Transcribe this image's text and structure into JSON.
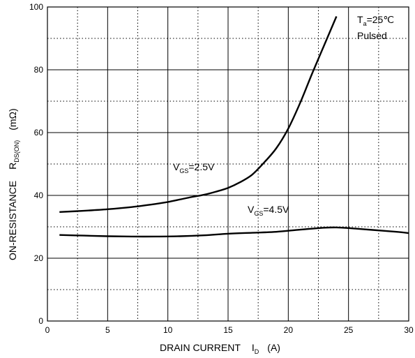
{
  "chart_data": {
    "type": "line",
    "xlabel": "DRAIN CURRENT",
    "xlabel_symbol": "I",
    "xlabel_symbol_sub": "D",
    "xlabel_unit": "(A)",
    "ylabel": "ON-RESISTANCE",
    "ylabel_symbol": "R",
    "ylabel_symbol_sub": "DS(ON)",
    "ylabel_unit": "(mΩ)",
    "xlim": [
      0,
      30
    ],
    "ylim": [
      0,
      100
    ],
    "x_ticks": [
      "0",
      "5",
      "10",
      "15",
      "20",
      "25",
      "30"
    ],
    "y_ticks": [
      "0",
      "20",
      "40",
      "60",
      "80",
      "100"
    ],
    "grid": "solid major lines, dotted minor lines",
    "annotation": {
      "line1_main": "T",
      "line1_sub": "a",
      "line1_rest": "=25℃",
      "line2": "Pulsed",
      "position": "top-right"
    },
    "series": [
      {
        "label_main": "V",
        "label_sub": "GS",
        "label_rest": "=2.5V",
        "x": [
          1,
          3,
          5,
          7,
          9,
          10,
          11,
          12,
          13,
          14,
          15,
          16,
          17,
          18,
          19,
          20,
          21,
          22,
          23,
          24
        ],
        "y": [
          34.7,
          35.1,
          35.6,
          36.3,
          37.3,
          37.9,
          38.7,
          39.5,
          40.2,
          41.2,
          42.4,
          44.2,
          46.6,
          50.5,
          55.0,
          61.3,
          69.6,
          79.0,
          88.0,
          97.0
        ]
      },
      {
        "label_main": "V",
        "label_sub": "GS",
        "label_rest": "=4.5V",
        "x": [
          1,
          3,
          5,
          7,
          9,
          11,
          13,
          15,
          17,
          19,
          21,
          23,
          24,
          25,
          27,
          29,
          30
        ],
        "y": [
          27.4,
          27.2,
          27.0,
          26.9,
          26.9,
          27.0,
          27.3,
          27.8,
          28.1,
          28.4,
          29.1,
          29.7,
          29.8,
          29.6,
          29.0,
          28.4,
          28.0
        ]
      }
    ]
  }
}
